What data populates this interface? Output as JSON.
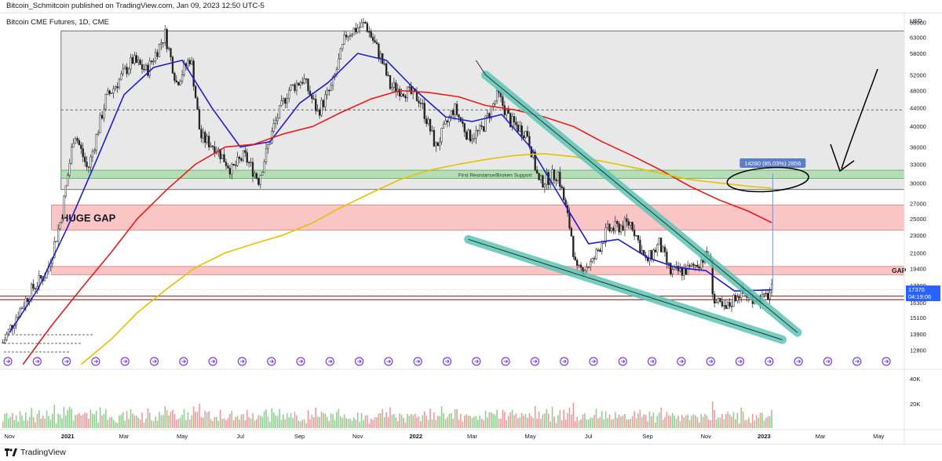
{
  "header": {
    "published_line": "Bitcoin_Schmitcoin published on TradingView.com, Jan 09, 2023 12:50 UTC-5",
    "symbol_line": "Bitcoin CME Futures, 1D, CME"
  },
  "footer": {
    "brand": "TradingView",
    "logo_icon": "tradingview-logo-icon"
  },
  "colors": {
    "up_candle": "#26a69a",
    "down_candle": "#ef5350",
    "ma_fast": "#1e1ed0",
    "ma_mid": "#e81c1c",
    "ma_slow": "#e5c100",
    "range_box": "#d9d9d9",
    "support_zone": "#9ed49e",
    "gap_zone": "#f8a6a6",
    "wedge": "#5cc4b4",
    "projection_label": "#5b7fc7",
    "price_badge": "#2962ff"
  },
  "chart_data": {
    "type": "candlestick",
    "title": "",
    "xlabel": "",
    "ylabel": "",
    "ylim": [
      11800,
      70000
    ],
    "scale": "log",
    "grid": false,
    "price_axis": {
      "currency_label": "USD",
      "ticks": [
        68000,
        63000,
        58000,
        52000,
        48000,
        44000,
        40000,
        36000,
        33000,
        30000,
        27000,
        25000,
        23000,
        21000,
        19400,
        17800,
        16300,
        15100,
        13900,
        12800
      ],
      "last_price_label": "17370",
      "countdown_label": "04:19:06"
    },
    "time_axis": {
      "labels": [
        "Nov",
        "2021",
        "Mar",
        "May",
        "Jul",
        "Sep",
        "Nov",
        "2022",
        "Mar",
        "May",
        "Jul",
        "Sep",
        "Nov",
        "2023",
        "Mar",
        "May"
      ]
    },
    "zones": [
      {
        "name": "range-box",
        "low": 29000,
        "high": 65000
      },
      {
        "name": "first-resistance",
        "low": 30700,
        "high": 32000,
        "label": "First Resistance/Broken Support"
      },
      {
        "name": "huge-gap",
        "low": 23600,
        "high": 26800,
        "label": "HUGE GAP"
      },
      {
        "name": "gap",
        "low": 18800,
        "high": 19600,
        "label": "GAP"
      }
    ],
    "horizontal_lines": [
      {
        "name": "dashed-mid",
        "value": 43500
      },
      {
        "name": "gap-edge-upper",
        "value": 16850
      },
      {
        "name": "gap-edge-lower",
        "value": 16550
      }
    ],
    "moving_averages": [
      {
        "key": "ma_fast",
        "points": [
          [
            "2020-11-01",
            14000
          ],
          [
            "2020-12-01",
            17500
          ],
          [
            "2021-01-01",
            24000
          ],
          [
            "2021-02-01",
            34000
          ],
          [
            "2021-03-01",
            47000
          ],
          [
            "2021-04-01",
            54000
          ],
          [
            "2021-05-01",
            56000
          ],
          [
            "2021-06-01",
            44000
          ],
          [
            "2021-07-01",
            36000
          ],
          [
            "2021-08-01",
            37000
          ],
          [
            "2021-09-01",
            45000
          ],
          [
            "2021-10-01",
            50000
          ],
          [
            "2021-11-01",
            58000
          ],
          [
            "2021-12-01",
            56000
          ],
          [
            "2022-01-01",
            48000
          ],
          [
            "2022-02-01",
            42000
          ],
          [
            "2022-03-01",
            41000
          ],
          [
            "2022-04-01",
            42500
          ],
          [
            "2022-05-01",
            36000
          ],
          [
            "2022-06-01",
            28000
          ],
          [
            "2022-07-01",
            22000
          ],
          [
            "2022-08-01",
            22500
          ],
          [
            "2022-09-01",
            20500
          ],
          [
            "2022-10-01",
            19500
          ],
          [
            "2022-11-01",
            19200
          ],
          [
            "2022-12-01",
            17300
          ],
          [
            "2023-01-09",
            17400
          ]
        ]
      },
      {
        "key": "ma_mid",
        "points": [
          [
            "2020-11-15",
            11900
          ],
          [
            "2020-12-15",
            14500
          ],
          [
            "2021-01-15",
            17500
          ],
          [
            "2021-02-15",
            21000
          ],
          [
            "2021-03-15",
            25000
          ],
          [
            "2021-04-15",
            29000
          ],
          [
            "2021-05-15",
            33000
          ],
          [
            "2021-06-15",
            36000
          ],
          [
            "2021-07-15",
            36500
          ],
          [
            "2021-08-15",
            38500
          ],
          [
            "2021-09-15",
            40000
          ],
          [
            "2021-10-15",
            43000
          ],
          [
            "2021-11-15",
            46000
          ],
          [
            "2021-12-15",
            48000
          ],
          [
            "2022-01-15",
            47500
          ],
          [
            "2022-02-15",
            46500
          ],
          [
            "2022-03-15",
            44500
          ],
          [
            "2022-04-15",
            43500
          ],
          [
            "2022-05-15",
            42000
          ],
          [
            "2022-06-15",
            40000
          ],
          [
            "2022-07-15",
            37000
          ],
          [
            "2022-08-15",
            34500
          ],
          [
            "2022-09-15",
            32000
          ],
          [
            "2022-10-15",
            29500
          ],
          [
            "2022-11-15",
            27500
          ],
          [
            "2022-12-15",
            26000
          ],
          [
            "2023-01-09",
            24500
          ]
        ]
      },
      {
        "key": "ma_slow",
        "points": [
          [
            "2021-01-15",
            11900
          ],
          [
            "2021-02-15",
            13500
          ],
          [
            "2021-03-15",
            15500
          ],
          [
            "2021-04-15",
            17500
          ],
          [
            "2021-05-15",
            19500
          ],
          [
            "2021-06-15",
            21000
          ],
          [
            "2021-07-15",
            22000
          ],
          [
            "2021-08-15",
            23000
          ],
          [
            "2021-09-15",
            24500
          ],
          [
            "2021-10-15",
            26500
          ],
          [
            "2021-11-15",
            28500
          ],
          [
            "2021-12-15",
            30500
          ],
          [
            "2022-01-15",
            32000
          ],
          [
            "2022-02-15",
            33000
          ],
          [
            "2022-03-15",
            33800
          ],
          [
            "2022-04-15",
            34500
          ],
          [
            "2022-05-15",
            34800
          ],
          [
            "2022-06-15",
            34300
          ],
          [
            "2022-07-15",
            33500
          ],
          [
            "2022-08-15",
            32500
          ],
          [
            "2022-09-15",
            31500
          ],
          [
            "2022-10-15",
            30500
          ],
          [
            "2022-11-15",
            30000
          ],
          [
            "2022-12-15",
            29500
          ],
          [
            "2023-01-09",
            29200
          ]
        ]
      }
    ],
    "price_path": [
      [
        "2020-10-25",
        13300
      ],
      [
        "2020-11-10",
        15500
      ],
      [
        "2020-11-25",
        17500
      ],
      [
        "2020-12-10",
        19000
      ],
      [
        "2020-12-25",
        25000
      ],
      [
        "2021-01-08",
        39000
      ],
      [
        "2021-01-22",
        32000
      ],
      [
        "2021-02-10",
        46000
      ],
      [
        "2021-02-22",
        50000
      ],
      [
        "2021-03-10",
        56000
      ],
      [
        "2021-03-25",
        53000
      ],
      [
        "2021-04-13",
        64000
      ],
      [
        "2021-04-25",
        50000
      ],
      [
        "2021-05-10",
        57000
      ],
      [
        "2021-05-20",
        38000
      ],
      [
        "2021-06-05",
        36000
      ],
      [
        "2021-06-22",
        32000
      ],
      [
        "2021-07-05",
        34500
      ],
      [
        "2021-07-20",
        30500
      ],
      [
        "2021-08-05",
        40000
      ],
      [
        "2021-08-20",
        48000
      ],
      [
        "2021-09-05",
        51000
      ],
      [
        "2021-09-20",
        43000
      ],
      [
        "2021-10-05",
        49000
      ],
      [
        "2021-10-20",
        64000
      ],
      [
        "2021-11-09",
        67500
      ],
      [
        "2021-11-25",
        57000
      ],
      [
        "2021-12-05",
        49000
      ],
      [
        "2021-12-20",
        48000
      ],
      [
        "2022-01-05",
        46000
      ],
      [
        "2022-01-22",
        36000
      ],
      [
        "2022-02-10",
        44000
      ],
      [
        "2022-02-25",
        38000
      ],
      [
        "2022-03-10",
        39000
      ],
      [
        "2022-03-28",
        47000
      ],
      [
        "2022-04-10",
        41000
      ],
      [
        "2022-04-28",
        38500
      ],
      [
        "2022-05-10",
        30000
      ],
      [
        "2022-05-30",
        31500
      ],
      [
        "2022-06-13",
        23000
      ],
      [
        "2022-06-18",
        19000
      ],
      [
        "2022-07-05",
        20000
      ],
      [
        "2022-07-20",
        23500
      ],
      [
        "2022-08-15",
        24500
      ],
      [
        "2022-08-30",
        20000
      ],
      [
        "2022-09-13",
        22000
      ],
      [
        "2022-09-25",
        19000
      ],
      [
        "2022-10-15",
        19300
      ],
      [
        "2022-11-05",
        21000
      ],
      [
        "2022-11-09",
        16500
      ],
      [
        "2022-11-21",
        15600
      ],
      [
        "2022-12-05",
        17200
      ],
      [
        "2022-12-20",
        16800
      ],
      [
        "2023-01-01",
        16600
      ],
      [
        "2023-01-09",
        17370
      ]
    ],
    "annotations": [
      {
        "name": "projection-label",
        "text": "14280 (85.03%) 2856"
      },
      {
        "name": "gap-label",
        "text": "GAP"
      },
      {
        "name": "huge-gap-label",
        "text": "HUGE GAP"
      },
      {
        "name": "support-label",
        "text": "First Resistance/Broken Support"
      }
    ],
    "volume_axis": {
      "ticks": [
        "40K",
        "20K"
      ]
    }
  }
}
